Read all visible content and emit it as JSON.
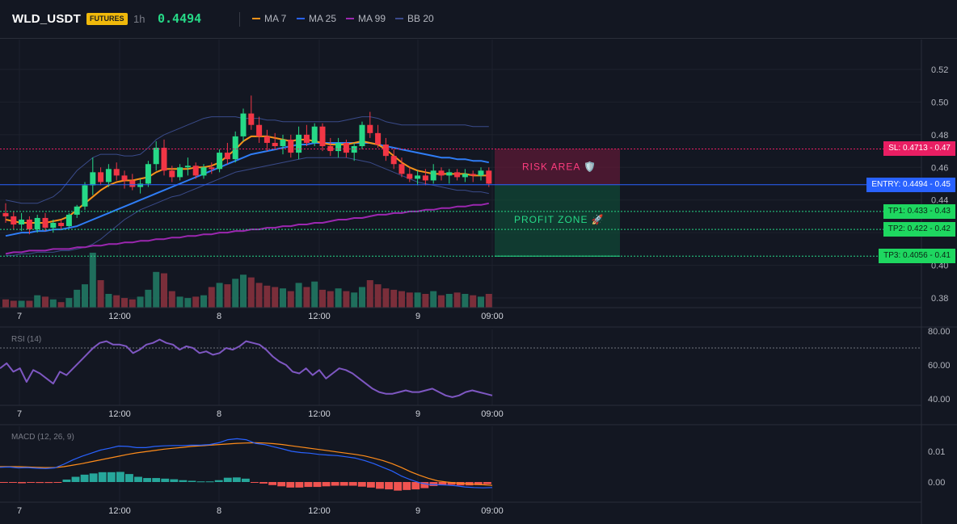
{
  "header": {
    "symbol": "WLD_USDT",
    "badge": "FUTURES",
    "timeframe": "1h",
    "last_price": "0.4494",
    "legend": [
      {
        "label": "MA 7",
        "color": "#f7931a"
      },
      {
        "label": "MA 25",
        "color": "#2962ff"
      },
      {
        "label": "MA 99",
        "color": "#9c27b0"
      },
      {
        "label": "BB 20",
        "color": "#3b4a8c"
      }
    ]
  },
  "colors": {
    "up": "#26d987",
    "down": "#f23645",
    "vol_up": "#1f6e5c",
    "vol_down": "#7a2e3a",
    "ma7": "#f7931a",
    "ma25": "#2f7df6",
    "ma99": "#9c27b0",
    "bb": "#3a4b8a",
    "rsi": "#7e57c2",
    "macd": "#2962ff",
    "signal": "#ff8c1a"
  },
  "levels": {
    "sl": {
      "label": "SL: 0.4713 - 0.47",
      "value": 0.4713
    },
    "entry": {
      "label": "ENTRY: 0.4494 - 0.45",
      "value": 0.4494
    },
    "tp1": {
      "label": "TP1: 0.433 - 0.43",
      "value": 0.433
    },
    "tp2": {
      "label": "TP2: 0.422 - 0.42",
      "value": 0.422
    },
    "tp3": {
      "label": "TP3: 0.4056 - 0.41",
      "value": 0.4056
    }
  },
  "zones": {
    "risk": "RISK AREA 🛡️",
    "profit": "PROFIT ZONE 🚀"
  },
  "panes": {
    "rsi_label": "RSI (14)",
    "macd_label": "MACD (12, 26, 9)"
  },
  "chart_data": [
    {
      "type": "candlestick",
      "title": "WLD_USDT 1h",
      "x_ticks": [
        "7",
        "12:00",
        "8",
        "12:00",
        "9",
        "09:00"
      ],
      "ylim": [
        0.37,
        0.53
      ],
      "y_ticks": [
        0.38,
        0.4,
        0.42,
        0.44,
        0.46,
        0.48,
        0.5,
        0.52
      ],
      "candles": [
        [
          0.432,
          0.438,
          0.426,
          0.43
        ],
        [
          0.43,
          0.433,
          0.422,
          0.425
        ],
        [
          0.425,
          0.432,
          0.421,
          0.428
        ],
        [
          0.428,
          0.43,
          0.419,
          0.422
        ],
        [
          0.422,
          0.431,
          0.42,
          0.429
        ],
        [
          0.429,
          0.432,
          0.421,
          0.423
        ],
        [
          0.423,
          0.428,
          0.42,
          0.426
        ],
        [
          0.426,
          0.428,
          0.422,
          0.424
        ],
        [
          0.424,
          0.432,
          0.423,
          0.431
        ],
        [
          0.431,
          0.437,
          0.429,
          0.436
        ],
        [
          0.436,
          0.451,
          0.434,
          0.449
        ],
        [
          0.449,
          0.466,
          0.443,
          0.457
        ],
        [
          0.457,
          0.46,
          0.449,
          0.451
        ],
        [
          0.451,
          0.462,
          0.448,
          0.459
        ],
        [
          0.459,
          0.463,
          0.452,
          0.455
        ],
        [
          0.455,
          0.458,
          0.447,
          0.452
        ],
        [
          0.452,
          0.456,
          0.446,
          0.448
        ],
        [
          0.448,
          0.453,
          0.444,
          0.45
        ],
        [
          0.45,
          0.464,
          0.448,
          0.462
        ],
        [
          0.462,
          0.476,
          0.458,
          0.472
        ],
        [
          0.472,
          0.477,
          0.455,
          0.458
        ],
        [
          0.458,
          0.461,
          0.451,
          0.454
        ],
        [
          0.454,
          0.462,
          0.452,
          0.46
        ],
        [
          0.46,
          0.466,
          0.455,
          0.461
        ],
        [
          0.461,
          0.463,
          0.453,
          0.455
        ],
        [
          0.455,
          0.462,
          0.453,
          0.46
        ],
        [
          0.46,
          0.463,
          0.456,
          0.459
        ],
        [
          0.459,
          0.471,
          0.457,
          0.469
        ],
        [
          0.469,
          0.475,
          0.462,
          0.465
        ],
        [
          0.465,
          0.482,
          0.463,
          0.479
        ],
        [
          0.479,
          0.496,
          0.476,
          0.493
        ],
        [
          0.493,
          0.504,
          0.483,
          0.486
        ],
        [
          0.486,
          0.491,
          0.475,
          0.479
        ],
        [
          0.479,
          0.483,
          0.47,
          0.475
        ],
        [
          0.475,
          0.481,
          0.471,
          0.473
        ],
        [
          0.473,
          0.48,
          0.468,
          0.477
        ],
        [
          0.477,
          0.48,
          0.466,
          0.469
        ],
        [
          0.469,
          0.485,
          0.465,
          0.48
        ],
        [
          0.48,
          0.486,
          0.473,
          0.475
        ],
        [
          0.475,
          0.487,
          0.473,
          0.485
        ],
        [
          0.485,
          0.487,
          0.47,
          0.473
        ],
        [
          0.473,
          0.478,
          0.467,
          0.47
        ],
        [
          0.47,
          0.478,
          0.466,
          0.475
        ],
        [
          0.475,
          0.477,
          0.466,
          0.469
        ],
        [
          0.469,
          0.475,
          0.464,
          0.473
        ],
        [
          0.473,
          0.488,
          0.471,
          0.486
        ],
        [
          0.486,
          0.494,
          0.478,
          0.481
        ],
        [
          0.481,
          0.486,
          0.472,
          0.474
        ],
        [
          0.474,
          0.478,
          0.464,
          0.467
        ],
        [
          0.467,
          0.471,
          0.459,
          0.462
        ],
        [
          0.462,
          0.466,
          0.454,
          0.456
        ],
        [
          0.456,
          0.46,
          0.451,
          0.453
        ],
        [
          0.453,
          0.458,
          0.449,
          0.455
        ],
        [
          0.455,
          0.459,
          0.449,
          0.452
        ],
        [
          0.452,
          0.462,
          0.45,
          0.458
        ],
        [
          0.458,
          0.46,
          0.452,
          0.455
        ],
        [
          0.455,
          0.459,
          0.45,
          0.457
        ],
        [
          0.457,
          0.459,
          0.452,
          0.454
        ],
        [
          0.454,
          0.459,
          0.451,
          0.456
        ],
        [
          0.456,
          0.458,
          0.451,
          0.455
        ],
        [
          0.455,
          0.46,
          0.452,
          0.458
        ],
        [
          0.458,
          0.46,
          0.448,
          0.45
        ]
      ],
      "volume": [
        6,
        5,
        5,
        5,
        9,
        8,
        6,
        4,
        7,
        13,
        17,
        40,
        20,
        10,
        9,
        7,
        6,
        8,
        13,
        26,
        25,
        12,
        8,
        7,
        8,
        9,
        15,
        18,
        17,
        21,
        24,
        22,
        18,
        16,
        15,
        14,
        12,
        18,
        15,
        19,
        13,
        12,
        14,
        12,
        11,
        15,
        20,
        17,
        14,
        13,
        12,
        11,
        11,
        10,
        12,
        9,
        10,
        11,
        10,
        9,
        8,
        10
      ],
      "series": [
        {
          "name": "MA 7",
          "values": [
            0.428,
            0.427,
            0.426,
            0.426,
            0.426,
            0.426,
            0.427,
            0.428,
            0.43,
            0.434,
            0.438,
            0.442,
            0.446,
            0.449,
            0.451,
            0.452,
            0.452,
            0.453,
            0.454,
            0.457,
            0.459,
            0.459,
            0.459,
            0.459,
            0.46,
            0.46,
            0.461,
            0.463,
            0.467,
            0.471,
            0.476,
            0.479,
            0.479,
            0.479,
            0.478,
            0.477,
            0.476,
            0.477,
            0.477,
            0.476,
            0.475,
            0.474,
            0.474,
            0.474,
            0.475,
            0.476,
            0.475,
            0.474,
            0.471,
            0.467,
            0.463,
            0.46,
            0.458,
            0.457,
            0.456,
            0.456,
            0.456,
            0.456,
            0.456,
            0.455,
            0.455,
            0.455
          ]
        },
        {
          "name": "MA 25",
          "values": [
            0.418,
            0.419,
            0.42,
            0.42,
            0.421,
            0.421,
            0.422,
            0.422,
            0.423,
            0.424,
            0.426,
            0.428,
            0.43,
            0.432,
            0.434,
            0.436,
            0.438,
            0.44,
            0.442,
            0.444,
            0.446,
            0.448,
            0.45,
            0.452,
            0.454,
            0.456,
            0.458,
            0.46,
            0.462,
            0.464,
            0.466,
            0.468,
            0.469,
            0.47,
            0.471,
            0.472,
            0.473,
            0.474,
            0.474,
            0.475,
            0.475,
            0.475,
            0.475,
            0.475,
            0.475,
            0.475,
            0.475,
            0.474,
            0.473,
            0.472,
            0.471,
            0.47,
            0.469,
            0.468,
            0.467,
            0.466,
            0.466,
            0.465,
            0.465,
            0.464,
            0.464,
            0.463
          ]
        },
        {
          "name": "MA 99",
          "values": [
            0.407,
            0.408,
            0.408,
            0.409,
            0.409,
            0.409,
            0.41,
            0.41,
            0.41,
            0.411,
            0.411,
            0.412,
            0.412,
            0.413,
            0.413,
            0.414,
            0.414,
            0.415,
            0.415,
            0.416,
            0.416,
            0.417,
            0.417,
            0.418,
            0.418,
            0.419,
            0.419,
            0.42,
            0.42,
            0.421,
            0.421,
            0.422,
            0.422,
            0.423,
            0.423,
            0.424,
            0.424,
            0.425,
            0.425,
            0.426,
            0.426,
            0.427,
            0.428,
            0.428,
            0.429,
            0.429,
            0.43,
            0.431,
            0.431,
            0.432,
            0.432,
            0.433,
            0.433,
            0.434,
            0.434,
            0.435,
            0.435,
            0.436,
            0.436,
            0.437,
            0.437,
            0.438
          ]
        },
        {
          "name": "BB 20 upper",
          "values": [
            0.44,
            0.439,
            0.438,
            0.438,
            0.438,
            0.44,
            0.442,
            0.446,
            0.452,
            0.458,
            0.462,
            0.466,
            0.468,
            0.468,
            0.468,
            0.467,
            0.467,
            0.468,
            0.472,
            0.477,
            0.48,
            0.482,
            0.484,
            0.486,
            0.488,
            0.49,
            0.491,
            0.491,
            0.491,
            0.491,
            0.49,
            0.49,
            0.49,
            0.489,
            0.489,
            0.488,
            0.488,
            0.488,
            0.488,
            0.488,
            0.488,
            0.488,
            0.488,
            0.489,
            0.49,
            0.491,
            0.491,
            0.49,
            0.488,
            0.487,
            0.486,
            0.486,
            0.486,
            0.486,
            0.486,
            0.486,
            0.486,
            0.486,
            0.486,
            0.485,
            0.485,
            0.485
          ]
        },
        {
          "name": "BB 20 lower",
          "values": [
            0.406,
            0.406,
            0.407,
            0.407,
            0.408,
            0.408,
            0.408,
            0.409,
            0.409,
            0.41,
            0.411,
            0.413,
            0.416,
            0.42,
            0.424,
            0.428,
            0.431,
            0.434,
            0.436,
            0.438,
            0.44,
            0.442,
            0.443,
            0.445,
            0.447,
            0.449,
            0.451,
            0.453,
            0.455,
            0.457,
            0.458,
            0.459,
            0.46,
            0.461,
            0.462,
            0.463,
            0.464,
            0.465,
            0.466,
            0.466,
            0.466,
            0.466,
            0.466,
            0.466,
            0.465,
            0.464,
            0.463,
            0.461,
            0.459,
            0.457,
            0.455,
            0.453,
            0.451,
            0.45,
            0.449,
            0.448,
            0.447,
            0.446,
            0.446,
            0.445,
            0.445,
            0.444
          ]
        }
      ]
    },
    {
      "type": "line",
      "title": "RSI (14)",
      "x_ticks": [
        "7",
        "12:00",
        "8",
        "12:00",
        "9",
        "09:00"
      ],
      "ylim": [
        35,
        84
      ],
      "y_ticks": [
        40,
        60,
        80
      ],
      "reference": 70,
      "series": [
        {
          "name": "RSI",
          "values": [
            58,
            61,
            56,
            58,
            50,
            57,
            55,
            52,
            49,
            56,
            54,
            58,
            62,
            66,
            70,
            73,
            74,
            72,
            72,
            71,
            67,
            69,
            72,
            73,
            75,
            73,
            72,
            69,
            71,
            70,
            67,
            68,
            66,
            67,
            70,
            69,
            71,
            74,
            73,
            72,
            69,
            65,
            62,
            60,
            56,
            55,
            58,
            54,
            57,
            52,
            55,
            58,
            57,
            55,
            52,
            49,
            46,
            44,
            43,
            43,
            44,
            45,
            44,
            44,
            45,
            46,
            44,
            42,
            41,
            42,
            44,
            45,
            44,
            43,
            42
          ]
        }
      ]
    },
    {
      "type": "line",
      "title": "MACD (12, 26, 9)",
      "x_ticks": [
        "7",
        "12:00",
        "8",
        "12:00",
        "9",
        "09:00"
      ],
      "ylim": [
        -0.005,
        0.0145
      ],
      "y_ticks": [
        0.0,
        0.01
      ],
      "series": [
        {
          "name": "MACD",
          "values": [
            0.0048,
            0.0049,
            0.0046,
            0.0047,
            0.0045,
            0.0044,
            0.0046,
            0.0058,
            0.0072,
            0.0084,
            0.0094,
            0.0104,
            0.011,
            0.0117,
            0.0116,
            0.0112,
            0.0112,
            0.0116,
            0.0118,
            0.0119,
            0.0119,
            0.012,
            0.012,
            0.0122,
            0.0128,
            0.0138,
            0.0141,
            0.0138,
            0.0126,
            0.0122,
            0.0115,
            0.0108,
            0.01,
            0.0096,
            0.0094,
            0.009,
            0.0088,
            0.0086,
            0.0082,
            0.0078,
            0.007,
            0.006,
            0.0048,
            0.0036,
            0.002,
            0.0008,
            -0.0002,
            -0.0008,
            -0.0009,
            -0.001,
            -0.0012,
            -0.0016,
            -0.0018,
            -0.0019,
            -0.0018
          ]
        },
        {
          "name": "Signal",
          "values": [
            0.005,
            0.005,
            0.005,
            0.0049,
            0.0048,
            0.0047,
            0.0047,
            0.005,
            0.0055,
            0.006,
            0.0066,
            0.0072,
            0.0078,
            0.0084,
            0.009,
            0.0095,
            0.0099,
            0.0103,
            0.0107,
            0.011,
            0.0113,
            0.0116,
            0.0118,
            0.012,
            0.0122,
            0.0124,
            0.0126,
            0.0127,
            0.0128,
            0.0127,
            0.0125,
            0.0122,
            0.0118,
            0.0114,
            0.011,
            0.0106,
            0.0102,
            0.0098,
            0.0094,
            0.009,
            0.0085,
            0.0078,
            0.007,
            0.006,
            0.0048,
            0.0034,
            0.0022,
            0.0012,
            0.0004,
            0.0,
            -0.0003,
            -0.0005,
            -0.0007,
            -0.0009,
            -0.0011
          ]
        },
        {
          "name": "Histogram",
          "values": [
            -0.0002,
            -0.0001,
            -0.0004,
            -0.0002,
            -0.0003,
            -0.0003,
            -0.0001,
            0.0008,
            0.0017,
            0.0024,
            0.0028,
            0.0032,
            0.0032,
            0.0033,
            0.0026,
            0.0017,
            0.0013,
            0.0013,
            0.0011,
            0.0009,
            0.0006,
            0.0004,
            0.0002,
            0.0002,
            0.0006,
            0.0014,
            0.0015,
            0.0011,
            -0.0002,
            -0.0005,
            -0.001,
            -0.0014,
            -0.0018,
            -0.0018,
            -0.0016,
            -0.0016,
            -0.0014,
            -0.0012,
            -0.0012,
            -0.0012,
            -0.0015,
            -0.0018,
            -0.0022,
            -0.0024,
            -0.0028,
            -0.0026,
            -0.0024,
            -0.002,
            -0.0013,
            -0.001,
            -0.0009,
            -0.0011,
            -0.0011,
            -0.001,
            -0.0007
          ]
        }
      ]
    }
  ]
}
